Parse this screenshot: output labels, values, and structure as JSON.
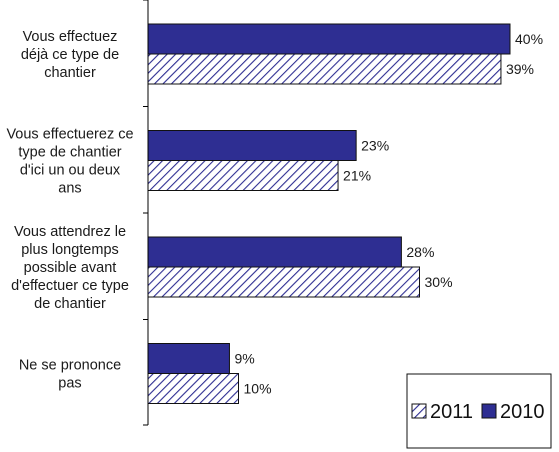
{
  "chart_data": {
    "type": "bar",
    "orientation": "horizontal",
    "categories": [
      "Vous effectuez déjà ce type de chantier",
      "Vous effectuerez ce type de chantier d'ici un ou deux ans",
      "Vous attendrez le plus longtemps possible avant d'effectuer ce type de chantier",
      "Ne se prononce pas"
    ],
    "category_lines": [
      [
        "Vous effectuez",
        "déjà ce type de",
        "chantier"
      ],
      [
        "Vous effectuerez ce",
        "type de chantier",
        "d'ici un ou deux",
        "ans"
      ],
      [
        "Vous attendrez le",
        "plus longtemps",
        "possible avant",
        "d'effectuer ce type",
        "de chantier"
      ],
      [
        "Ne se prononce",
        "pas"
      ]
    ],
    "series": [
      {
        "name": "2010",
        "values": [
          40,
          23,
          28,
          9
        ],
        "labels": [
          "40%",
          "23%",
          "28%",
          "9%"
        ],
        "color": "#2e2e92",
        "pattern": "solid"
      },
      {
        "name": "2011",
        "values": [
          39,
          21,
          30,
          10
        ],
        "labels": [
          "39%",
          "21%",
          "30%",
          "10%"
        ],
        "color": "#2e2e92",
        "pattern": "diagonal-hatch"
      }
    ],
    "xlim": [
      0,
      40
    ],
    "grid": false,
    "legend_position": "bottom-right",
    "legend_order": [
      "2011",
      "2010"
    ],
    "title": "",
    "xlabel": "",
    "ylabel": ""
  }
}
